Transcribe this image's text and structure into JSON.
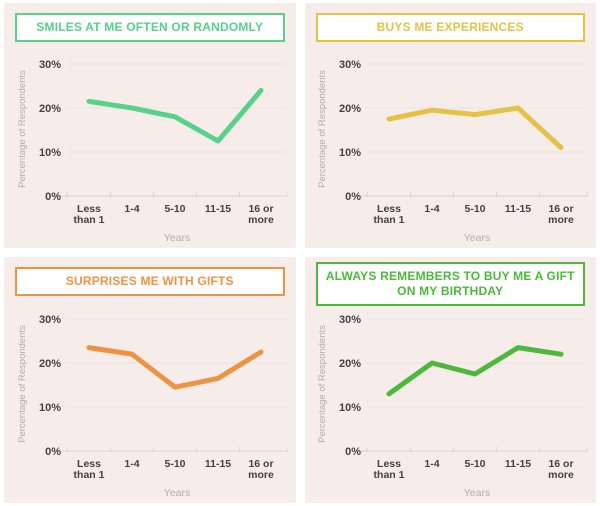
{
  "page": {
    "background": "#ffffff",
    "panel_background": "#f6edeb",
    "title_box_background": "#ffffff"
  },
  "style": {
    "grid_color": "#eae2e0",
    "baseline_color": "#ddd4d2",
    "tick_text_color": "#473f3f",
    "axis_text_color": "#b3abaa"
  },
  "chart_data": [
    {
      "type": "line",
      "title": "SMILES AT ME OFTEN OR RANDOMLY",
      "color": "#58d18a",
      "categories": [
        "Less than 1",
        "1-4",
        "5-10",
        "11-15",
        "16 or more"
      ],
      "category_lines": [
        [
          "Less",
          "than 1"
        ],
        [
          "1-4"
        ],
        [
          "5-10"
        ],
        [
          "11-15"
        ],
        [
          "16 or",
          "more"
        ]
      ],
      "values": [
        21.5,
        20,
        18,
        12.5,
        24
      ],
      "xlabel": "Years",
      "ylabel": "Percentage of Respondents",
      "ylim": [
        0,
        30
      ],
      "grid": true,
      "legend": "none",
      "yticks": [
        {
          "value": 30,
          "label": "30%"
        },
        {
          "value": 20,
          "label": "20%"
        },
        {
          "value": 10,
          "label": "10%"
        },
        {
          "value": 0,
          "label": "0%"
        }
      ]
    },
    {
      "type": "line",
      "title": "BUYS ME EXPERIENCES",
      "color": "#e4c245",
      "categories": [
        "Less than 1",
        "1-4",
        "5-10",
        "11-15",
        "16 or more"
      ],
      "category_lines": [
        [
          "Less",
          "than 1"
        ],
        [
          "1-4"
        ],
        [
          "5-10"
        ],
        [
          "11-15"
        ],
        [
          "16 or",
          "more"
        ]
      ],
      "values": [
        17.5,
        19.5,
        18.5,
        20,
        11
      ],
      "xlabel": "Years",
      "ylabel": "Percentage of Respondents",
      "ylim": [
        0,
        30
      ],
      "grid": true,
      "legend": "none",
      "yticks": [
        {
          "value": 30,
          "label": "30%"
        },
        {
          "value": 20,
          "label": "20%"
        },
        {
          "value": 10,
          "label": "10%"
        },
        {
          "value": 0,
          "label": "0%"
        }
      ]
    },
    {
      "type": "line",
      "title": "SURPRISES ME WITH GIFTS",
      "color": "#ee9243",
      "categories": [
        "Less than 1",
        "1-4",
        "5-10",
        "11-15",
        "16 or more"
      ],
      "category_lines": [
        [
          "Less",
          "than 1"
        ],
        [
          "1-4"
        ],
        [
          "5-10"
        ],
        [
          "11-15"
        ],
        [
          "16 or",
          "more"
        ]
      ],
      "values": [
        23.5,
        22,
        14.5,
        16.5,
        22.5
      ],
      "xlabel": "Years",
      "ylabel": "Percentage of Respondents",
      "ylim": [
        0,
        30
      ],
      "grid": true,
      "legend": "none",
      "yticks": [
        {
          "value": 30,
          "label": "30%"
        },
        {
          "value": 20,
          "label": "20%"
        },
        {
          "value": 10,
          "label": "10%"
        },
        {
          "value": 0,
          "label": "0%"
        }
      ]
    },
    {
      "type": "line",
      "title": "ALWAYS REMEMBERS TO BUY ME A GIFT ON MY BIRTHDAY",
      "color": "#4db83b",
      "categories": [
        "Less than 1",
        "1-4",
        "5-10",
        "11-15",
        "16 or more"
      ],
      "category_lines": [
        [
          "Less",
          "than 1"
        ],
        [
          "1-4"
        ],
        [
          "5-10"
        ],
        [
          "11-15"
        ],
        [
          "16 or",
          "more"
        ]
      ],
      "values": [
        13,
        20,
        17.5,
        23.5,
        22
      ],
      "xlabel": "Years",
      "ylabel": "Percentage of Respondents",
      "ylim": [
        0,
        30
      ],
      "grid": true,
      "legend": "none",
      "yticks": [
        {
          "value": 30,
          "label": "30%"
        },
        {
          "value": 20,
          "label": "20%"
        },
        {
          "value": 10,
          "label": "10%"
        },
        {
          "value": 0,
          "label": "0%"
        }
      ]
    }
  ]
}
